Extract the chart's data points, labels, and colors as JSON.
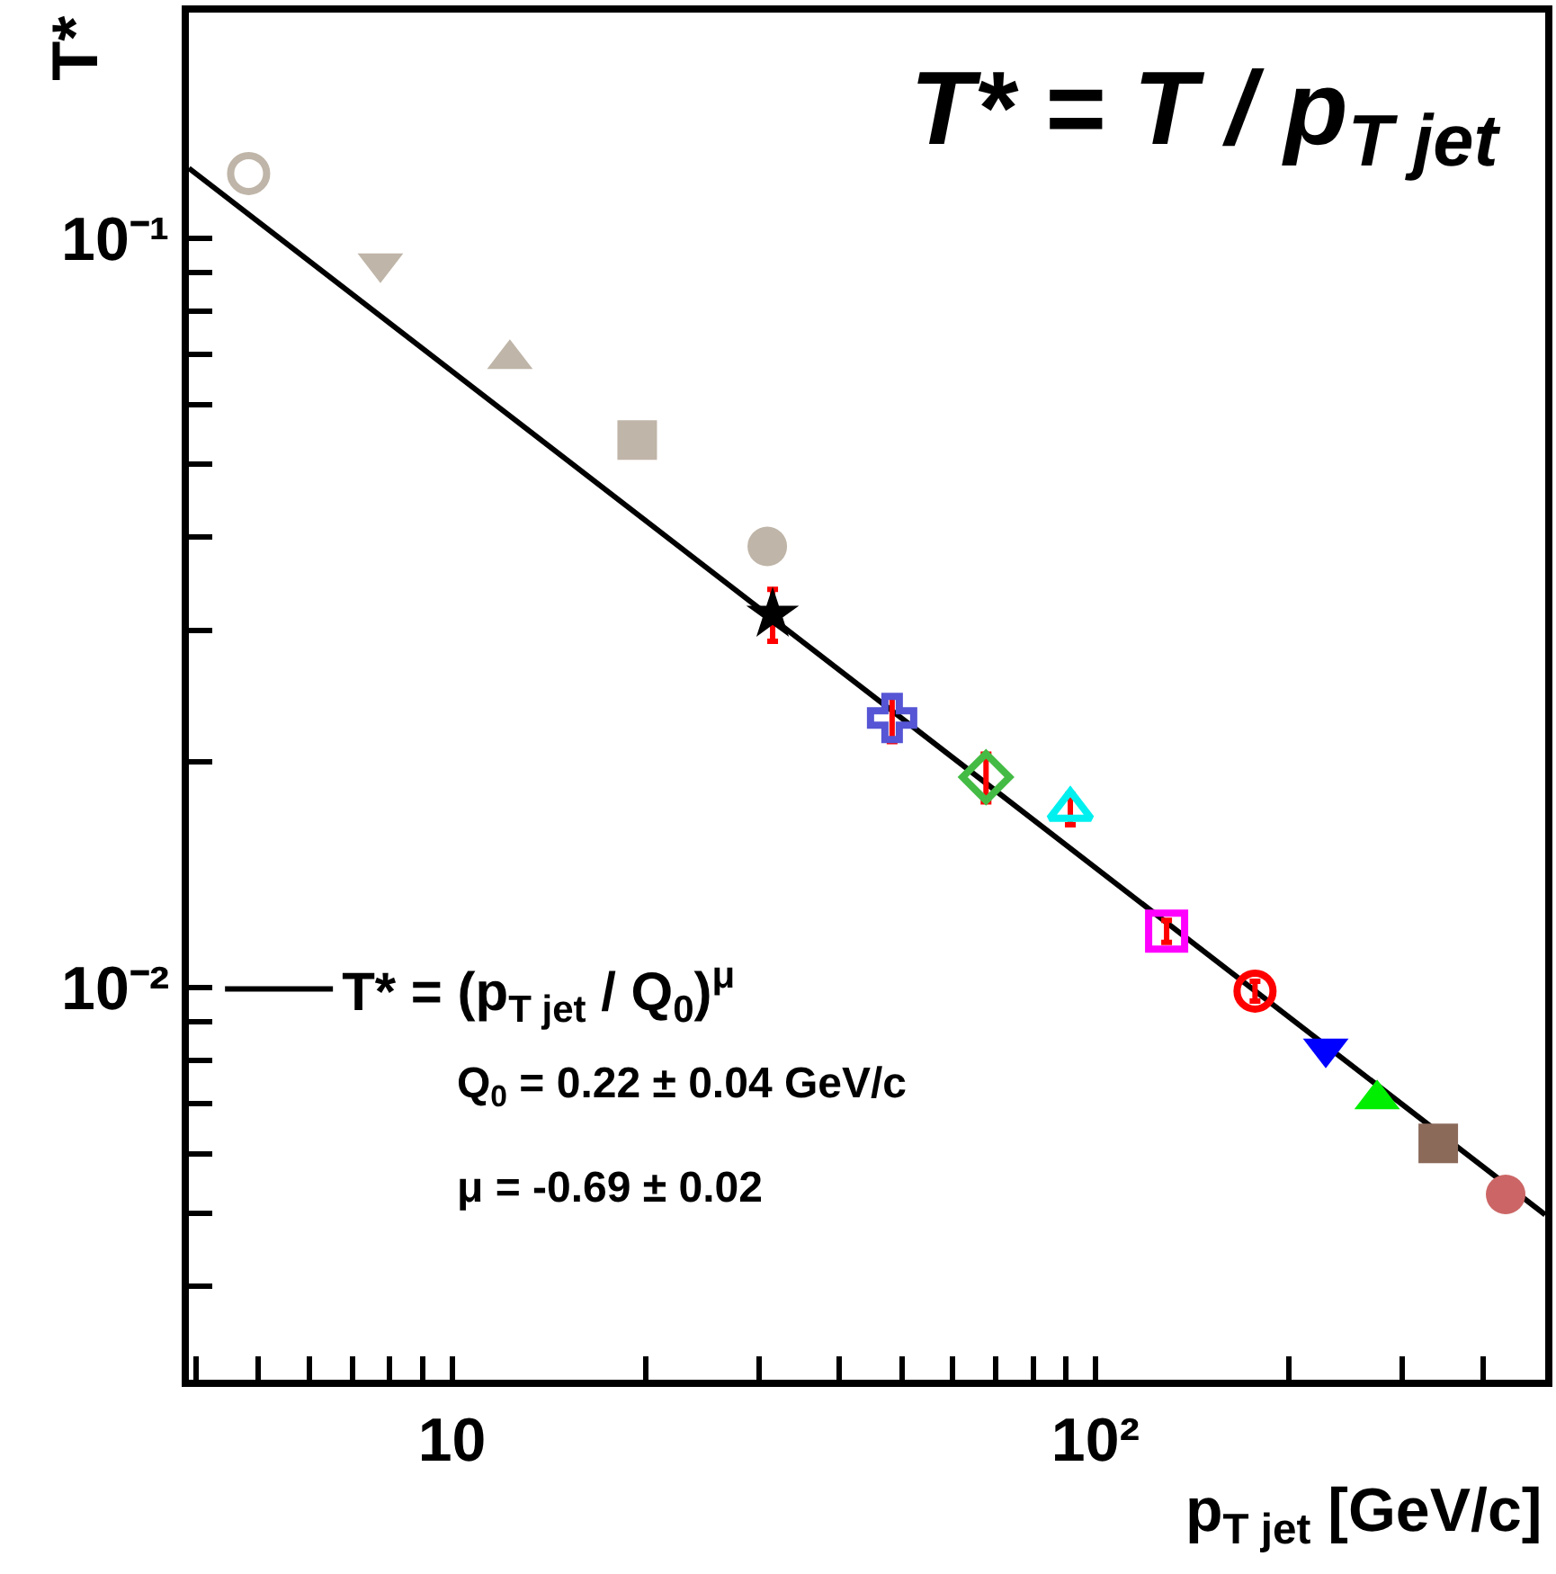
{
  "chart_data": {
    "type": "scatter",
    "title": "T* = T / p$_{T jet}$",
    "xlabel": "p$_{T jet}$ [GeV/c]",
    "ylabel": "T*",
    "log": "xy",
    "xlim": [
      3.9,
      500
    ],
    "ylim": [
      0.003,
      0.2
    ],
    "grid": false,
    "legend": "bottom left",
    "xticks": [
      {
        "value": 4,
        "label": null
      },
      {
        "value": 5,
        "label": null
      },
      {
        "value": 6,
        "label": null
      },
      {
        "value": 7,
        "label": null
      },
      {
        "value": 8,
        "label": null
      },
      {
        "value": 9,
        "label": null
      },
      10,
      {
        "value": 20,
        "label": null
      },
      {
        "value": 30,
        "label": null
      },
      {
        "value": 40,
        "label": null
      },
      {
        "value": 50,
        "label": null
      },
      {
        "value": 60,
        "label": null
      },
      {
        "value": 70,
        "label": null
      },
      {
        "value": 80,
        "label": null
      },
      {
        "value": 90,
        "label": null
      },
      {
        "value": 100,
        "label": "10²"
      },
      {
        "value": 200,
        "label": null
      },
      {
        "value": 300,
        "label": null
      },
      {
        "value": 400,
        "label": null
      }
    ],
    "yticks": [
      {
        "value": 0.004,
        "label": null
      },
      {
        "value": 0.005,
        "label": null
      },
      {
        "value": 0.006,
        "label": null
      },
      {
        "value": 0.007,
        "label": null
      },
      {
        "value": 0.008,
        "label": null
      },
      {
        "value": 0.009,
        "label": null
      },
      {
        "value": 0.01,
        "label": "10⁻²"
      },
      {
        "value": 0.02,
        "label": null
      },
      {
        "value": 0.03,
        "label": null
      },
      {
        "value": 0.04,
        "label": null
      },
      {
        "value": 0.05,
        "label": null
      },
      {
        "value": 0.06,
        "label": null
      },
      {
        "value": 0.07,
        "label": null
      },
      {
        "value": 0.08,
        "label": null
      },
      {
        "value": 0.09,
        "label": null
      },
      {
        "value": 0.1,
        "label": "10⁻¹"
      }
    ],
    "annotations": [
      "Q$_{0}$ = 0.22 ± 0.04 GeV/c",
      "μ = -0.69 ± 0.02"
    ],
    "series": [
      {
        "type": "line",
        "name": "T* = (p$_{T jet}$ / Q$_{0}$)$^{μ}$",
        "color": "#000000",
        "x": [
          3.9,
          500
        ],
        "values": [
          0.124,
          0.00498
        ],
        "line_style": "solid",
        "marker": "none"
      },
      {
        "color": "#bfb5a8",
        "marker": "circle",
        "x": [
          4.83
        ],
        "values": [
          0.122
        ]
      },
      {
        "color": "#bfb5a8",
        "marker": "triangle",
        "x": [
          7.74
        ],
        "values": [
          0.0926
        ]
      },
      {
        "color": "#bfb5a8",
        "marker": "triangle",
        "x": [
          12.3
        ],
        "values": [
          0.069
        ]
      },
      {
        "color": "#bfb5a8",
        "marker": "square",
        "x": [
          19.4
        ],
        "values": [
          0.0538
        ]
      },
      {
        "color": "#bfb5a8",
        "marker": "circle",
        "x": [
          30.9
        ],
        "values": [
          0.0388
        ]
      },
      {
        "color": "#000000",
        "marker": "star",
        "x": [
          31.5
        ],
        "values": [
          0.0315
        ],
        "errors": [
          0.0025
        ]
      },
      {
        "color": "#5555d5",
        "marker": "cross",
        "x": [
          48.3
        ],
        "values": [
          0.0229
        ],
        "errors": [
          0.0016
        ]
      },
      {
        "color": "#44bb44",
        "marker": "diamond",
        "x": [
          67.6
        ],
        "values": [
          0.0191
        ],
        "errors": [
          0.0014
        ]
      },
      {
        "color": "#00f0f0",
        "marker": "triangle",
        "x": [
          91.4
        ],
        "values": [
          0.0173
        ],
        "errors": [
          0.0008
        ]
      },
      {
        "color": "#ff00ff",
        "marker": "square",
        "x": [
          129
        ],
        "values": [
          0.0119
        ],
        "errors": [
          0.0004
        ]
      },
      {
        "color": "#ff0000",
        "marker": "circle",
        "x": [
          177
        ],
        "values": [
          0.0099
        ],
        "errors": [
          0.0003
        ]
      },
      {
        "color": "#0000ff",
        "marker": "triangle",
        "x": [
          228
        ],
        "values": [
          0.0083
        ]
      },
      {
        "color": "#00ee00",
        "marker": "triangle",
        "x": [
          274
        ],
        "values": [
          0.0071
        ]
      },
      {
        "color": "#8b6a5a",
        "marker": "square",
        "x": [
          341
        ],
        "values": [
          0.0062
        ]
      },
      {
        "color": "#cc6666",
        "marker": "circle",
        "x": [
          434
        ],
        "values": [
          0.0053
        ]
      }
    ]
  }
}
